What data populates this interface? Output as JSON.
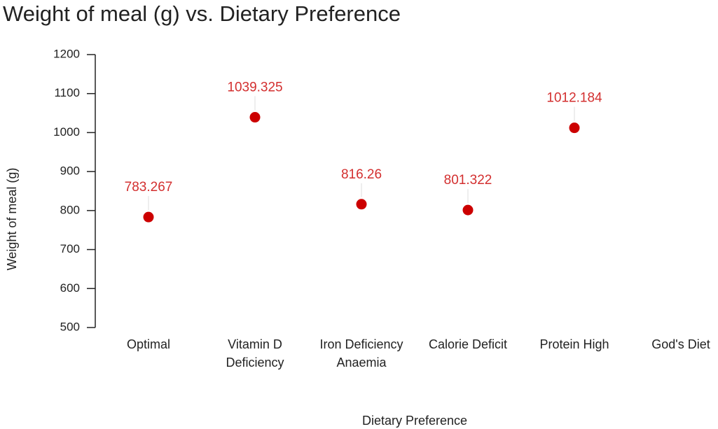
{
  "chart_data": {
    "type": "scatter",
    "title": "Weight of meal (g) vs. Dietary Preference",
    "x_label": "Dietary Preference",
    "y_label": "Weight of meal (g)",
    "categories": [
      "Optimal",
      "Vitamin D Deficiency",
      "Iron Deficiency Anaemia",
      "Calorie Deficit",
      "Protein High",
      "God's Diet"
    ],
    "values": [
      783.267,
      1039.325,
      816.26,
      801.322,
      1012.184,
      null
    ],
    "color": "#cc0000",
    "label_color": "#d32f2f",
    "ylim": [
      500,
      1200
    ],
    "yticks": [
      500,
      600,
      700,
      800,
      900,
      1000,
      1100,
      1200
    ],
    "grid": false
  }
}
